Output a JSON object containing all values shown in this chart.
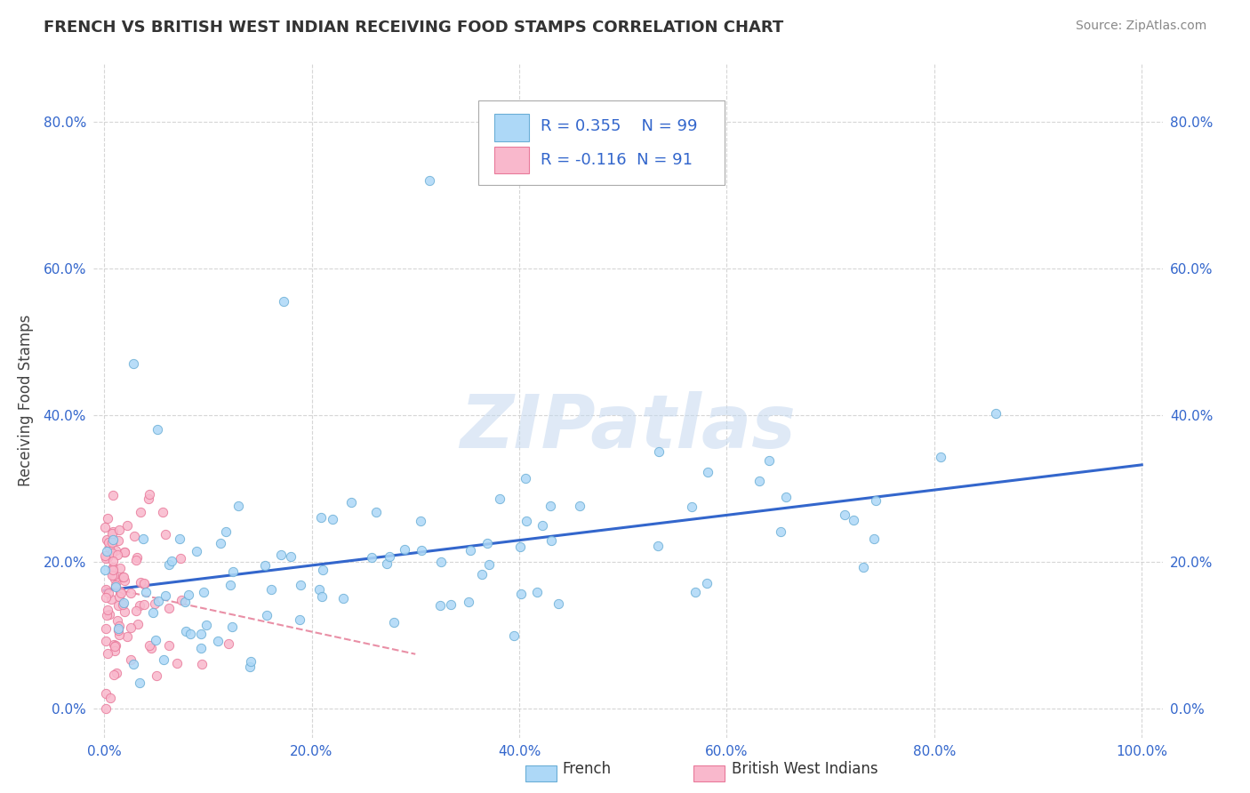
{
  "title": "FRENCH VS BRITISH WEST INDIAN RECEIVING FOOD STAMPS CORRELATION CHART",
  "source_text": "Source: ZipAtlas.com",
  "ylabel": "Receiving Food Stamps",
  "watermark": "ZIPatlas",
  "xlim": [
    -0.01,
    1.02
  ],
  "ylim": [
    -0.04,
    0.88
  ],
  "xticks": [
    0.0,
    0.2,
    0.4,
    0.6,
    0.8,
    1.0
  ],
  "xtick_labels": [
    "0.0%",
    "20.0%",
    "40.0%",
    "60.0%",
    "80.0%",
    "100.0%"
  ],
  "yticks": [
    0.0,
    0.2,
    0.4,
    0.6,
    0.8
  ],
  "ytick_labels": [
    "0.0%",
    "20.0%",
    "40.0%",
    "60.0%",
    "80.0%"
  ],
  "french_color": "#add8f7",
  "french_edge_color": "#6aaed6",
  "bwi_color": "#f9b8cc",
  "bwi_edge_color": "#e8799a",
  "french_line_color": "#3366cc",
  "bwi_line_color": "#e06080",
  "legend_blue_color": "#add8f7",
  "legend_pink_color": "#f9b8cc",
  "legend_text_color": "#3366cc",
  "R_french": 0.355,
  "N_french": 99,
  "R_bwi": -0.116,
  "N_bwi": 91,
  "background_color": "#ffffff",
  "grid_color": "#cccccc",
  "title_color": "#333333",
  "source_color": "#888888",
  "marker_size": 55
}
